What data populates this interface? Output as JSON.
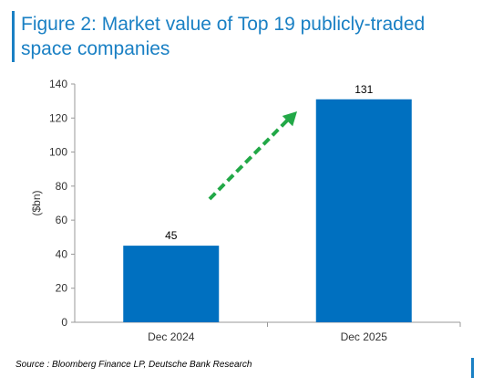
{
  "header": {
    "title": "Figure 2: Market value of Top 19 publicly-traded space companies"
  },
  "footer": {
    "source": "Source : Bloomberg Finance LP, Deutsche Bank Research"
  },
  "colors": {
    "accent": "#1a80c4",
    "bar": "#0070c0",
    "arrow": "#22a847"
  },
  "chart_data": {
    "type": "bar",
    "categories": [
      "Dec 2024",
      "Dec 2025"
    ],
    "values": [
      45,
      131
    ],
    "data_labels": [
      "45",
      "131"
    ],
    "title": "Figure 2: Market value of Top 19 publicly-traded space companies",
    "xlabel": "",
    "ylabel": "($bn)",
    "ylim": [
      0,
      140
    ],
    "yticks": [
      0,
      20,
      40,
      60,
      80,
      100,
      120,
      140
    ],
    "grid": false,
    "legend": "none",
    "annotation": "green dashed arrow pointing up-right between bars"
  }
}
